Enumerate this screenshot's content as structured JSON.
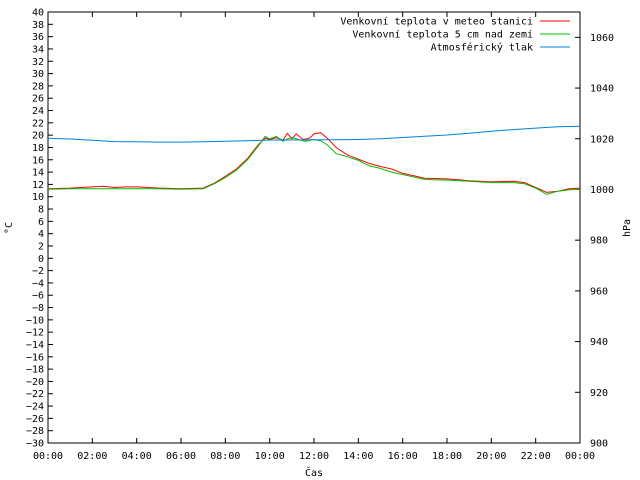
{
  "chart_data": {
    "type": "line",
    "xlabel": "Čas",
    "ylabel_left": "°C",
    "ylabel_right": "hPa",
    "x_ticks": [
      "00:00",
      "02:00",
      "04:00",
      "06:00",
      "08:00",
      "10:00",
      "12:00",
      "14:00",
      "16:00",
      "18:00",
      "20:00",
      "22:00",
      "00:00"
    ],
    "x_range_hours": [
      0,
      24
    ],
    "ylim_left": [
      -30,
      40
    ],
    "y_left_step": 2,
    "ylim_right": [
      900,
      1070
    ],
    "y_right_ticks": [
      900,
      920,
      940,
      960,
      980,
      1000,
      1020,
      1040,
      1060
    ],
    "legend_position": "top-right",
    "series": [
      {
        "name": "Venkovní teplota v meteo stanici",
        "color": "#ff0000",
        "axis": "left",
        "x": [
          0,
          1,
          2,
          2.5,
          3,
          3.5,
          4,
          5,
          6,
          7,
          7.5,
          8,
          8.5,
          9,
          9.5,
          9.8,
          10,
          10.3,
          10.6,
          10.8,
          11,
          11.2,
          11.5,
          11.8,
          12,
          12.3,
          12.6,
          13,
          13.5,
          14,
          14.5,
          15,
          15.5,
          16,
          17,
          18,
          19,
          20,
          21,
          21.5,
          22,
          22.5,
          23,
          23.5,
          24
        ],
        "values": [
          11.3,
          11.4,
          11.6,
          11.7,
          11.5,
          11.6,
          11.6,
          11.4,
          11.3,
          11.4,
          12.2,
          13.3,
          14.5,
          16.2,
          18.5,
          19.5,
          19.3,
          19.6,
          19.2,
          20.3,
          19.4,
          20.2,
          19.3,
          19.5,
          20.2,
          20.4,
          19.5,
          18.0,
          16.8,
          16.1,
          15.4,
          14.9,
          14.5,
          13.8,
          13.0,
          12.9,
          12.6,
          12.4,
          12.5,
          12.3,
          11.5,
          10.7,
          10.9,
          11.3,
          11.4
        ]
      },
      {
        "name": "Venkovní teplota 5 cm nad zemí",
        "color": "#00c000",
        "axis": "left",
        "x": [
          0,
          1,
          2,
          3,
          4,
          5,
          6,
          7,
          7.5,
          8,
          8.5,
          9,
          9.5,
          9.8,
          10,
          10.3,
          10.6,
          10.8,
          11,
          11.3,
          11.6,
          12,
          12.3,
          12.6,
          13,
          13.5,
          14,
          14.5,
          15,
          15.5,
          16,
          17,
          18,
          19,
          20,
          21,
          21.5,
          22,
          22.5,
          23,
          23.5,
          24
        ],
        "values": [
          11.2,
          11.3,
          11.3,
          11.3,
          11.3,
          11.3,
          11.2,
          11.3,
          12.1,
          13.1,
          14.3,
          16.0,
          18.3,
          19.8,
          19.4,
          19.8,
          19.0,
          19.4,
          19.6,
          19.3,
          19.0,
          19.3,
          19.1,
          18.4,
          17.0,
          16.5,
          15.9,
          15.0,
          14.6,
          14.0,
          13.6,
          12.8,
          12.7,
          12.5,
          12.3,
          12.3,
          12.1,
          11.4,
          10.4,
          10.9,
          11.1,
          11.2
        ]
      },
      {
        "name": "Atmosférický tlak",
        "color": "#0080e0",
        "axis": "right",
        "x": [
          0,
          1,
          2,
          3,
          4,
          5,
          6,
          7,
          8,
          9,
          10,
          11,
          12,
          13,
          14,
          15,
          16,
          17,
          18,
          19,
          20,
          21,
          22,
          23,
          24
        ],
        "values": [
          1020.2,
          1019.9,
          1019.4,
          1018.9,
          1018.8,
          1018.7,
          1018.7,
          1018.8,
          1019.0,
          1019.2,
          1019.5,
          1019.5,
          1019.6,
          1019.6,
          1019.7,
          1020.0,
          1020.5,
          1021.0,
          1021.5,
          1022.2,
          1023.0,
          1023.6,
          1024.2,
          1024.7,
          1024.9
        ]
      }
    ]
  }
}
